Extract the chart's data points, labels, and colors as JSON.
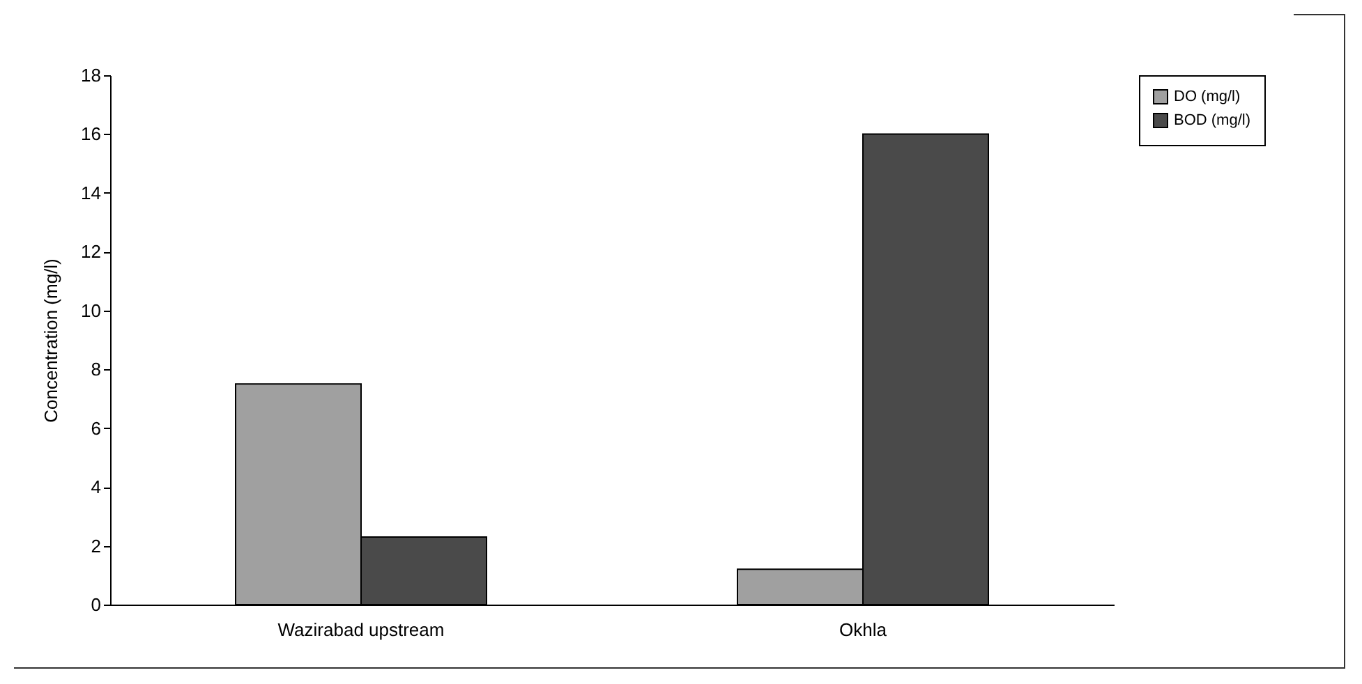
{
  "chart_data": {
    "type": "bar",
    "ylabel": "Concentration (mg/l)",
    "categories": [
      "Wazirabad upstream",
      "Okhla"
    ],
    "series": [
      {
        "name": "DO (mg/l)",
        "color": "#a0a0a0",
        "values": [
          7.5,
          1.2
        ]
      },
      {
        "name": "BOD (mg/l)",
        "color": "#4a4a4a",
        "values": [
          2.3,
          16.0
        ]
      }
    ],
    "ylim": [
      0,
      18
    ],
    "yticks": [
      0,
      2,
      4,
      6,
      8,
      10,
      12,
      14,
      16,
      18
    ],
    "grid": false,
    "legend": "right"
  }
}
